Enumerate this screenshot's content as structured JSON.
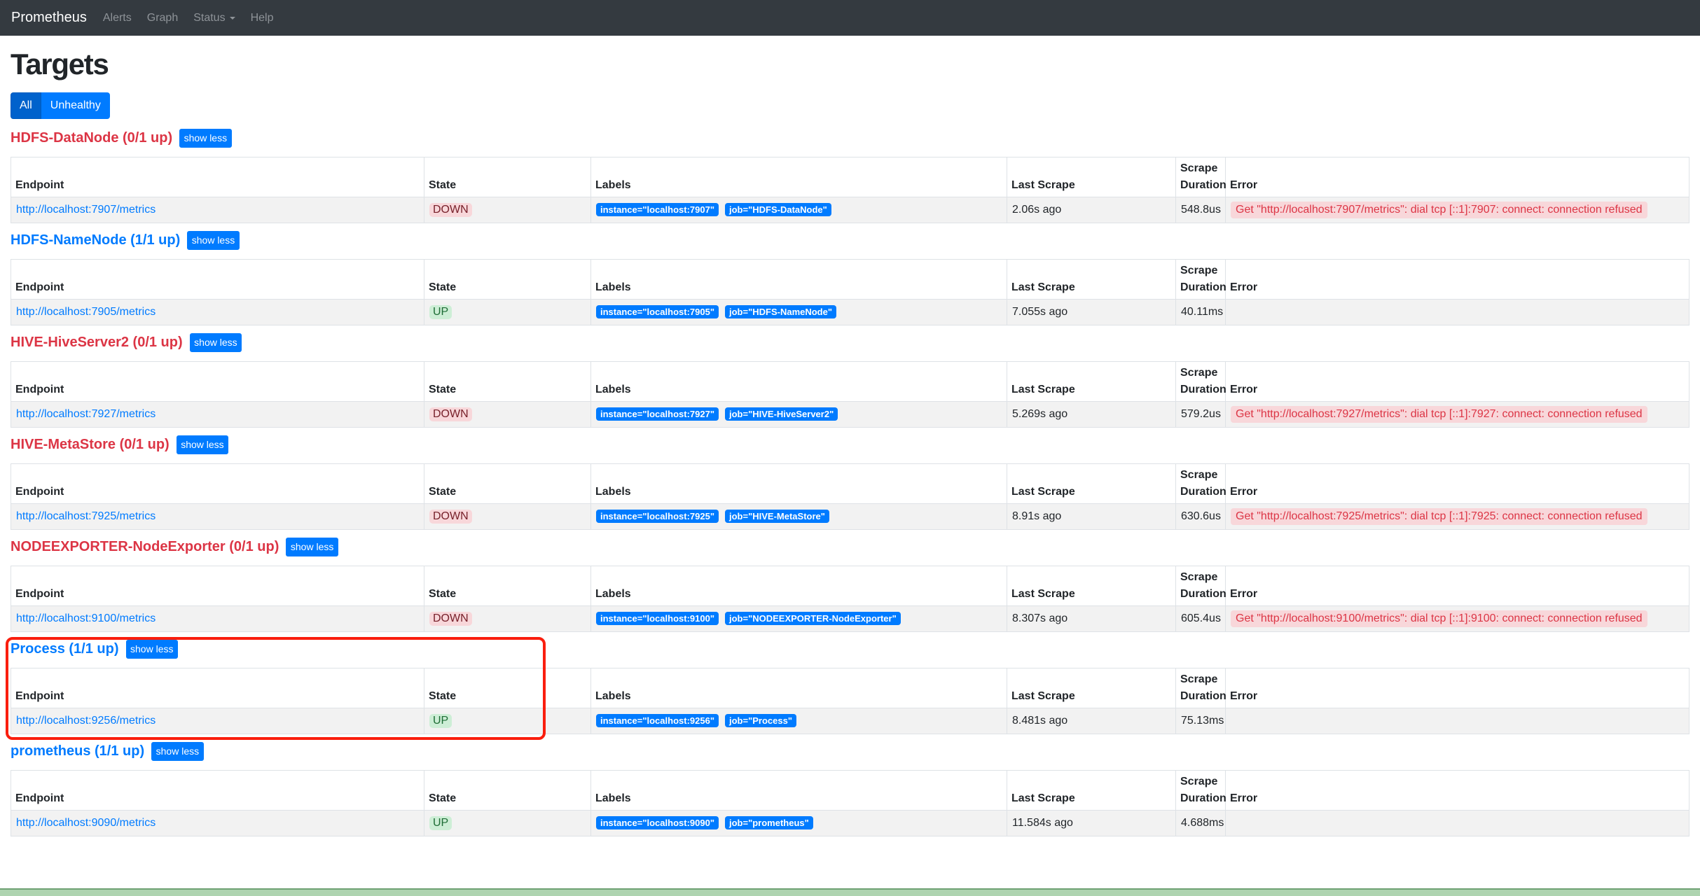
{
  "navbar": {
    "brand": "Prometheus",
    "items": [
      {
        "label": "Alerts",
        "caret": false
      },
      {
        "label": "Graph",
        "caret": false
      },
      {
        "label": "Status",
        "caret": true
      },
      {
        "label": "Help",
        "caret": false
      }
    ]
  },
  "page": {
    "title": "Targets"
  },
  "filters": {
    "all": "All",
    "unhealthy": "Unhealthy",
    "active": "All"
  },
  "labels": {
    "show_less": "show less"
  },
  "table": {
    "headers": [
      "Endpoint",
      "State",
      "Labels",
      "Last Scrape",
      "Scrape Duration",
      "Error"
    ]
  },
  "sections": [
    {
      "title": "HDFS-DataNode (0/1 up)",
      "endpoint": "http://localhost:7907/metrics",
      "state": "DOWN",
      "labels": [
        "instance=\"localhost:7907\"",
        "job=\"HDFS-DataNode\""
      ],
      "last_scrape": "2.06s ago",
      "scrape_duration": "548.8us",
      "error": "Get \"http://localhost:7907/metrics\": dial tcp [::1]:7907: connect: connection refused"
    },
    {
      "title": "HDFS-NameNode (1/1 up)",
      "endpoint": "http://localhost:7905/metrics",
      "state": "UP",
      "labels": [
        "instance=\"localhost:7905\"",
        "job=\"HDFS-NameNode\""
      ],
      "last_scrape": "7.055s ago",
      "scrape_duration": "40.11ms",
      "error": ""
    },
    {
      "title": "HIVE-HiveServer2 (0/1 up)",
      "endpoint": "http://localhost:7927/metrics",
      "state": "DOWN",
      "labels": [
        "instance=\"localhost:7927\"",
        "job=\"HIVE-HiveServer2\""
      ],
      "last_scrape": "5.269s ago",
      "scrape_duration": "579.2us",
      "error": "Get \"http://localhost:7927/metrics\": dial tcp [::1]:7927: connect: connection refused"
    },
    {
      "title": "HIVE-MetaStore (0/1 up)",
      "endpoint": "http://localhost:7925/metrics",
      "state": "DOWN",
      "labels": [
        "instance=\"localhost:7925\"",
        "job=\"HIVE-MetaStore\""
      ],
      "last_scrape": "8.91s ago",
      "scrape_duration": "630.6us",
      "error": "Get \"http://localhost:7925/metrics\": dial tcp [::1]:7925: connect: connection refused"
    },
    {
      "title": "NODEEXPORTER-NodeExporter (0/1 up)",
      "endpoint": "http://localhost:9100/metrics",
      "state": "DOWN",
      "labels": [
        "instance=\"localhost:9100\"",
        "job=\"NODEEXPORTER-NodeExporter\""
      ],
      "last_scrape": "8.307s ago",
      "scrape_duration": "605.4us",
      "error": "Get \"http://localhost:9100/metrics\": dial tcp [::1]:9100: connect: connection refused"
    },
    {
      "title": "Process (1/1 up)",
      "endpoint": "http://localhost:9256/metrics",
      "state": "UP",
      "labels": [
        "instance=\"localhost:9256\"",
        "job=\"Process\""
      ],
      "last_scrape": "8.481s ago",
      "scrape_duration": "75.13ms",
      "error": ""
    },
    {
      "title": "prometheus (1/1 up)",
      "endpoint": "http://localhost:9090/metrics",
      "state": "UP",
      "labels": [
        "instance=\"localhost:9090\"",
        "job=\"prometheus\""
      ],
      "last_scrape": "11.584s ago",
      "scrape_duration": "4.688ms",
      "error": ""
    }
  ],
  "annotation": {
    "target_section": "Process (1/1 up)",
    "color": "#fa1e0e"
  },
  "colors": {
    "navbar_bg": "#343a40",
    "primary": "#007bff",
    "primary_active": "#0062cc",
    "danger": "#dc3545",
    "up_badge_bg": "#cdeed6",
    "up_badge_text": "#1d6d35",
    "down_badge_bg": "#f8d7da",
    "down_badge_text": "#77202a",
    "bottom_strip": "#aed4b0"
  }
}
